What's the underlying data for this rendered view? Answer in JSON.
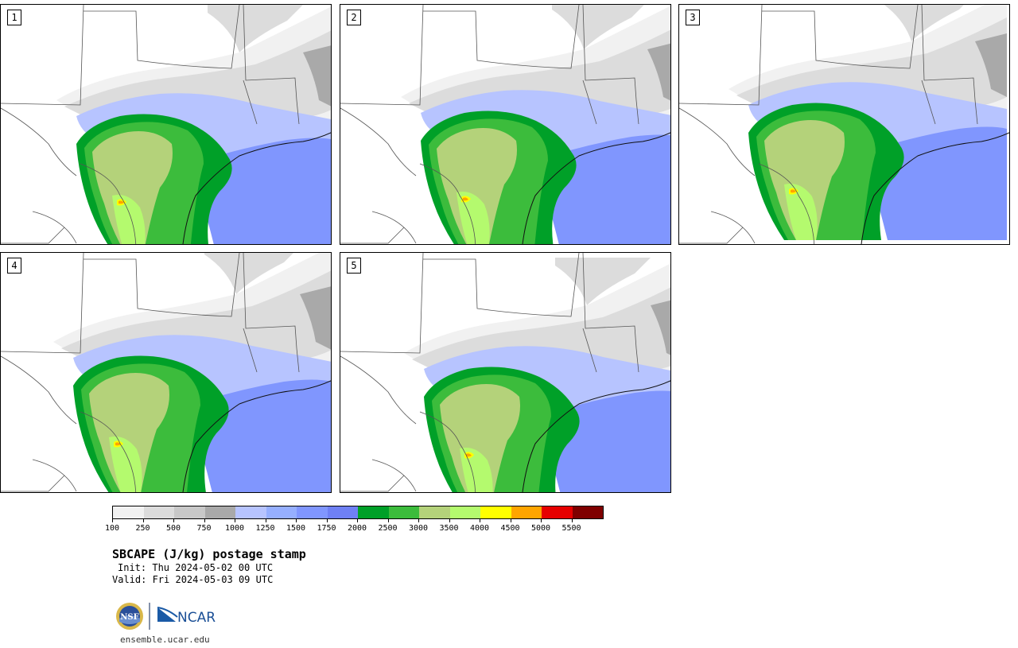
{
  "title": "SBCAPE (J/kg) postage stamp",
  "init": "Init: Thu 2024-05-02 00 UTC",
  "valid": "Valid: Fri 2024-05-03 09 UTC",
  "site": "ensemble.ucar.edu",
  "logos": {
    "nsf": "NSF",
    "ncar": "NCAR"
  },
  "panels": [
    {
      "label": "1"
    },
    {
      "label": "2"
    },
    {
      "label": "3"
    },
    {
      "label": "4"
    },
    {
      "label": "5"
    }
  ],
  "colorbar": {
    "colors": [
      "#f1f1f1",
      "#dcdcdc",
      "#c8c8c8",
      "#a9a9a9",
      "#b7c4ff",
      "#96afff",
      "#8096fe",
      "#6f80f4",
      "#00a028",
      "#3cbc3c",
      "#b4d27a",
      "#b4fa6e",
      "#ffff00",
      "#ffa500",
      "#e60000",
      "#7f0000"
    ],
    "tick_labels": [
      "100",
      "250",
      "500",
      "750",
      "1000",
      "1250",
      "1500",
      "1750",
      "2000",
      "2500",
      "3000",
      "3500",
      "4000",
      "4500",
      "5000",
      "5500"
    ]
  }
}
